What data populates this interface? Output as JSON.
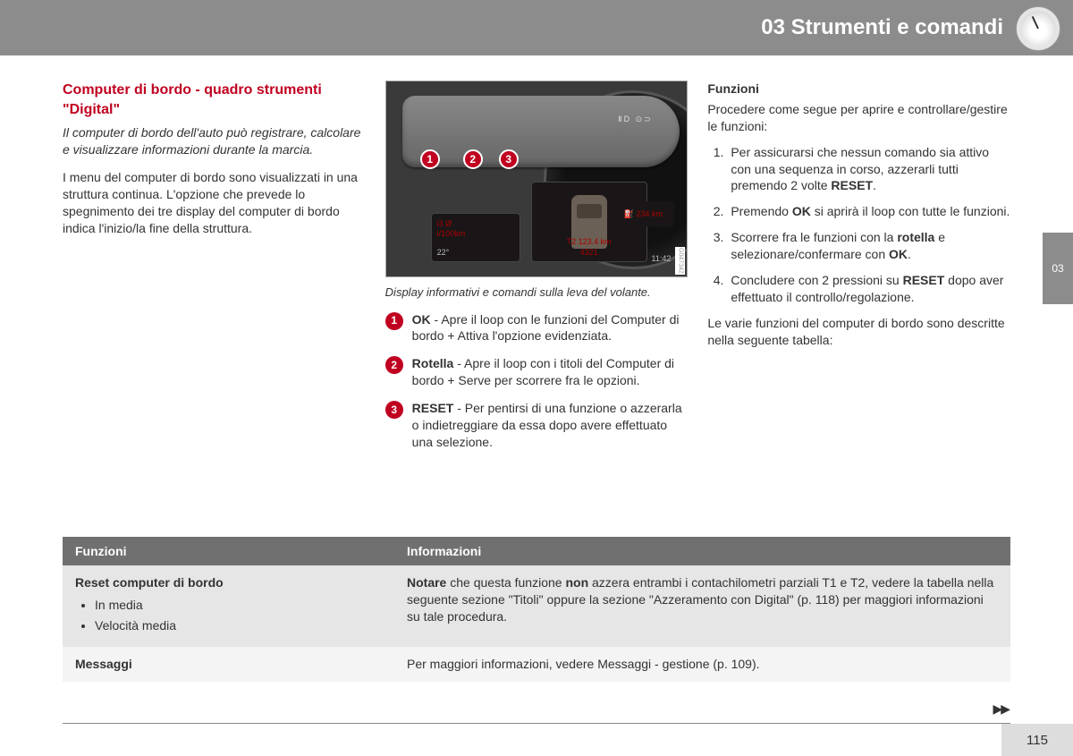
{
  "header": {
    "chapter": "03 Strumenti e comandi",
    "side_tab": "03",
    "page_number": "115"
  },
  "col1": {
    "title": "Computer di bordo - quadro strumenti \"Digital\"",
    "intro": "Il computer di bordo dell'auto può registrare, calcolare e visualizzare informazioni durante la marcia.",
    "para": "I menu del computer di bordo sono visualizzati in una struttura continua. L'opzione che prevede lo spegnimento dei tre display del computer di bordo indica l'inizio/la fine della struttura."
  },
  "figure": {
    "stalk_label": "ⅡD ⊙⊃",
    "panel1_l1": "i3 Ø",
    "panel1_l2": "l/100km",
    "panel1_temp": "22°",
    "panel2_l1": "T2 123.4 km",
    "panel2_l2": "4321",
    "panel3": "⛽ 234 km",
    "panel3_time": "11:42",
    "side_code": "G047342",
    "caption": "Display informativi e comandi sulla leva del volante.",
    "legend": [
      {
        "n": "1",
        "bold": "OK",
        "text": " - Apre il loop con le funzioni del Computer di bordo + Attiva l'opzione evidenziata."
      },
      {
        "n": "2",
        "bold": "Rotella",
        "text": " - Apre il loop con i titoli del Computer di bordo + Serve per scorrere fra le opzioni."
      },
      {
        "n": "3",
        "bold": "RESET",
        "text": " - Per pentirsi di una funzione o azzerarla o indietreggiare da essa dopo avere effettuato una selezione."
      }
    ]
  },
  "col3": {
    "heading": "Funzioni",
    "lead": "Procedere come segue per aprire e controllare/gestire le funzioni:",
    "steps": [
      "Per assicurarsi che nessun comando sia attivo con una sequenza in corso, azzerarli tutti premendo 2 volte <b>RESET</b>.",
      "Premendo <b>OK</b> si aprirà il loop con tutte le funzioni.",
      "Scorrere fra le funzioni con la <b>rotella</b> e selezionare/confermare con <b>OK</b>.",
      "Concludere con 2 pressioni su <b>RESET</b> dopo aver effettuato il controllo/regolazione."
    ],
    "outro": "Le varie funzioni del computer di bordo sono descritte nella seguente tabella:"
  },
  "table": {
    "th1": "Funzioni",
    "th2": "Informazioni",
    "rows": [
      {
        "c1_head": "Reset computer di bordo",
        "c1_items": [
          "In media",
          "Velocità media"
        ],
        "c2": "<b>Notare</b> che questa funzione <b>non</b> azzera entrambi i contachilometri parziali T1 e T2, vedere la tabella nella seguente sezione \"Titoli\" oppure la sezione \"Azzeramento con Digital\" (p. 118) per maggiori informazioni su tale procedura."
      },
      {
        "c1_head": "Messaggi",
        "c1_items": [],
        "c2": "Per maggiori informazioni, vedere Messaggi - gestione (p. 109)."
      }
    ]
  },
  "colors": {
    "accent": "#c00020",
    "header_bg": "#8c8c8c"
  }
}
